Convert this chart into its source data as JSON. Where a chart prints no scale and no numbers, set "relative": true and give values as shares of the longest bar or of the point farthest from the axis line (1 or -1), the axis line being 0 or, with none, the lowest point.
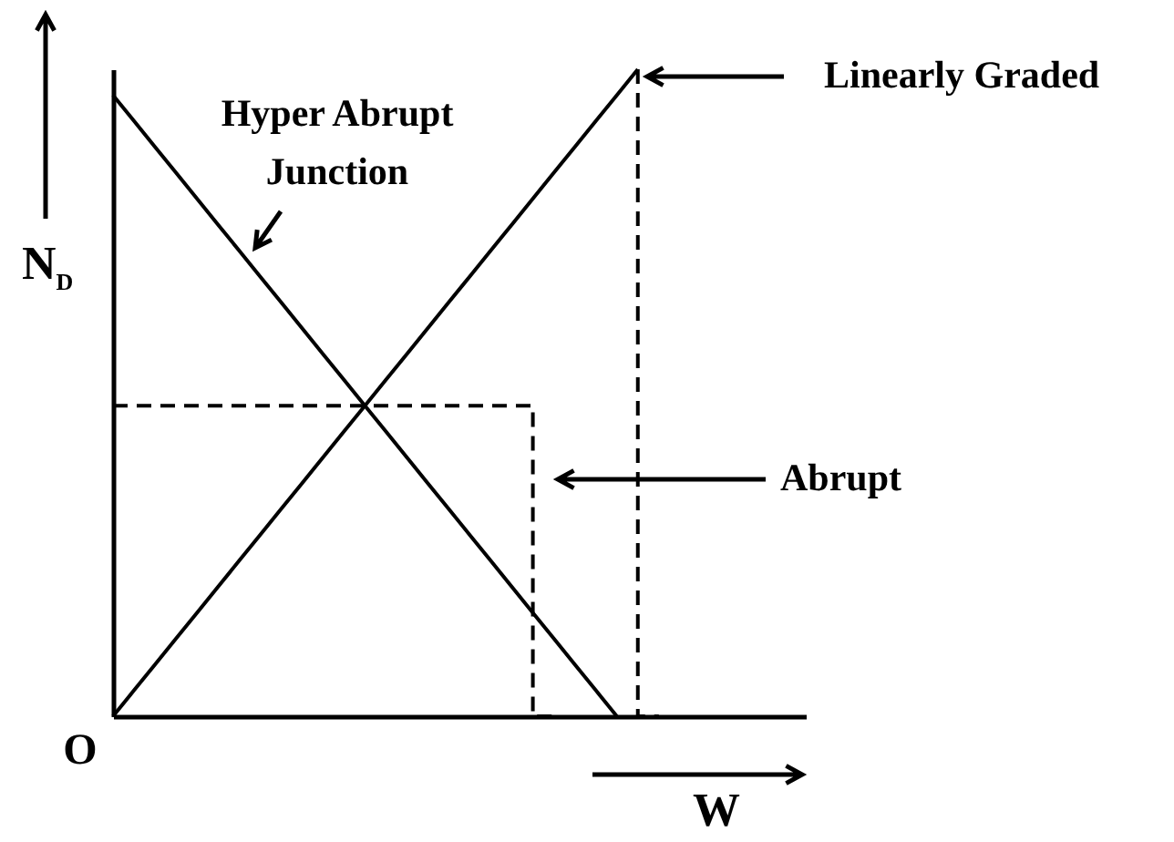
{
  "chart_data": {
    "type": "line",
    "relative": true,
    "xlabel": "W",
    "ylabel": "N$_{D}$",
    "annotations": [
      "O"
    ],
    "categories": [
      null,
      null,
      null,
      null,
      null,
      null,
      null,
      null,
      null,
      null,
      null,
      null,
      null,
      null,
      null,
      null,
      null,
      null,
      null,
      null,
      null,
      null,
      null,
      null,
      null,
      null,
      null,
      null,
      null,
      null,
      null,
      null,
      null,
      null
    ],
    "series": [
      {
        "name": "Hyper Abrupt Junction",
        "color": "#000000",
        "values": [
          0.96,
          0.92,
          0.88,
          0.84,
          0.8,
          0.76,
          0.72,
          0.68,
          0.64,
          0.6,
          0.56,
          0.52,
          0.48,
          0.44,
          0.4,
          0.36,
          0.32,
          0.28,
          0.24,
          0.2,
          0.16,
          0.12,
          0.08,
          0.04,
          0,
          null,
          null,
          null,
          null,
          null,
          null,
          null,
          null,
          null
        ],
        "line_style": "solid"
      },
      {
        "name": "Linearly Graded",
        "color": "#000000",
        "values": [
          0,
          0.04,
          0.08,
          0.12,
          0.16,
          0.2,
          0.24,
          0.28,
          0.32,
          0.36,
          0.4,
          0.44,
          0.48,
          0.52,
          0.56,
          0.6,
          0.64,
          0.68,
          0.72,
          0.76,
          0.8,
          0.84,
          0.88,
          0.92,
          0.96,
          1,
          null,
          null,
          null,
          null,
          null,
          null,
          null,
          null
        ],
        "line_style": "solid"
      },
      {
        "name": "Abrupt",
        "type": "step",
        "color": "#000000",
        "values": [
          0.48,
          0.48,
          0.48,
          0.48,
          0.48,
          0.48,
          0.48,
          0.48,
          0.48,
          0.48,
          0.48,
          0.48,
          0.48,
          0.48,
          0.48,
          0.48,
          0.48,
          0.48,
          0.48,
          0.48,
          0.48,
          0,
          null,
          null,
          null,
          null,
          null,
          null,
          null,
          null,
          null,
          null,
          null,
          null
        ],
        "line_style": "dashed"
      },
      {
        "type": "step",
        "color": "#000000",
        "values": [
          null,
          null,
          null,
          null,
          null,
          null,
          null,
          null,
          null,
          null,
          null,
          null,
          null,
          null,
          null,
          null,
          null,
          null,
          null,
          null,
          null,
          null,
          null,
          null,
          null,
          1,
          0,
          null,
          null,
          null,
          null,
          null,
          null,
          null
        ],
        "line_style": "dashed"
      }
    ]
  }
}
